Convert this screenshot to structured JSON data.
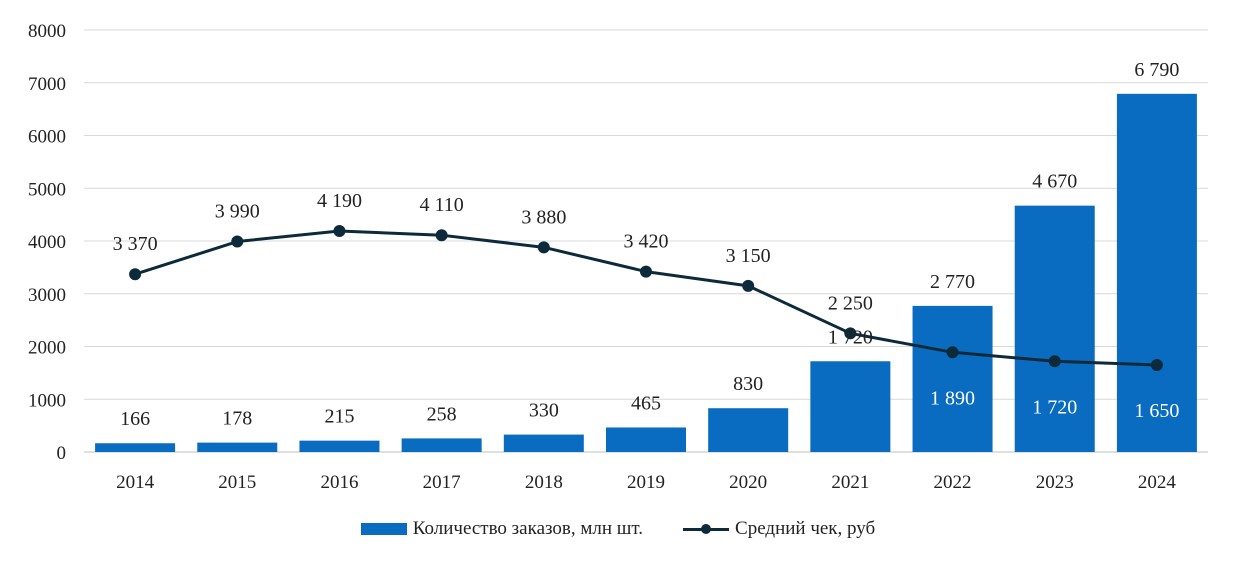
{
  "chart_data": {
    "type": "bar+line",
    "title": "",
    "xlabel": "",
    "ylabel": "",
    "ylim": [
      0,
      8000
    ],
    "yticks": [
      0,
      1000,
      2000,
      3000,
      4000,
      5000,
      6000,
      7000,
      8000
    ],
    "grid": true,
    "legend_position": "bottom",
    "categories": [
      "2014",
      "2015",
      "2016",
      "2017",
      "2018",
      "2019",
      "2020",
      "2021",
      "2022",
      "2023",
      "2024"
    ],
    "series": [
      {
        "name": "Количество заказов, млн шт.",
        "type": "bar",
        "color": "#0a6cc0",
        "values": [
          166,
          178,
          215,
          258,
          330,
          465,
          830,
          1720,
          2770,
          4670,
          6790
        ],
        "labels": [
          "166",
          "178",
          "215",
          "258",
          "330",
          "465",
          "830",
          "1 720",
          "2 770",
          "4 670",
          "6 790"
        ]
      },
      {
        "name": "Средний чек, руб",
        "type": "line",
        "color": "#0d2a3a",
        "values": [
          3370,
          3990,
          4190,
          4110,
          3880,
          3420,
          3150,
          2250,
          1890,
          1720,
          1650
        ],
        "labels": [
          "3 370",
          "3 990",
          "4 190",
          "4 110",
          "3 880",
          "3 420",
          "3 150",
          "2 250",
          "1 890",
          "1 720",
          "1 650"
        ],
        "label_positions": [
          "above",
          "above",
          "above",
          "above",
          "above",
          "above",
          "above",
          "above",
          "below",
          "below",
          "below"
        ]
      }
    ]
  }
}
